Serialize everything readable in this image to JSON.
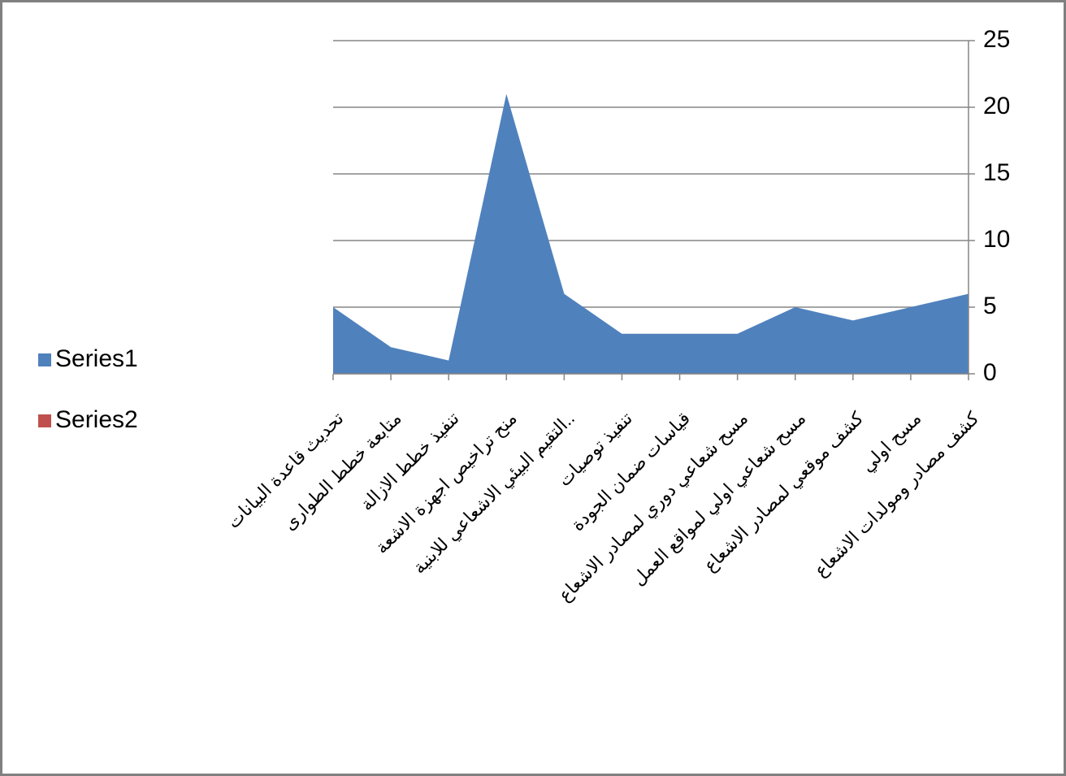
{
  "chart_data": {
    "type": "area",
    "categories": [
      "تحديث قاعدة البيانات",
      "متابعة خطط الطوارى",
      "تنفيذ خطط الازالة",
      "منح تراخيص اجهزة الاشعة",
      "التقيم البيئي الاشعاعي للابنية..",
      "تنفيذ توصيات",
      "قياسات ضمان الجودة",
      "مسح شعاعي دوري لمصادر الاشعاع",
      "مسح شعاعي اولي لمواقع العمل",
      "كشف موقعي لمصادر الاشعاع",
      "مسح اولي",
      "كشف مصادر ومولدات الاشعاع"
    ],
    "series": [
      {
        "name": "Series1",
        "color": "#4f81bd",
        "values": [
          5,
          2,
          1,
          21,
          6,
          3,
          3,
          3,
          5,
          4,
          5,
          6
        ]
      },
      {
        "name": "Series2",
        "color": "#c0504d",
        "values": [
          null,
          null,
          null,
          null,
          null,
          null,
          null,
          null,
          null,
          null,
          null,
          null
        ]
      }
    ],
    "ylim": [
      0,
      25
    ],
    "yticks": [
      0,
      5,
      10,
      15,
      20,
      25
    ],
    "grid": true,
    "yaxis_side": "right",
    "legend": "left"
  }
}
